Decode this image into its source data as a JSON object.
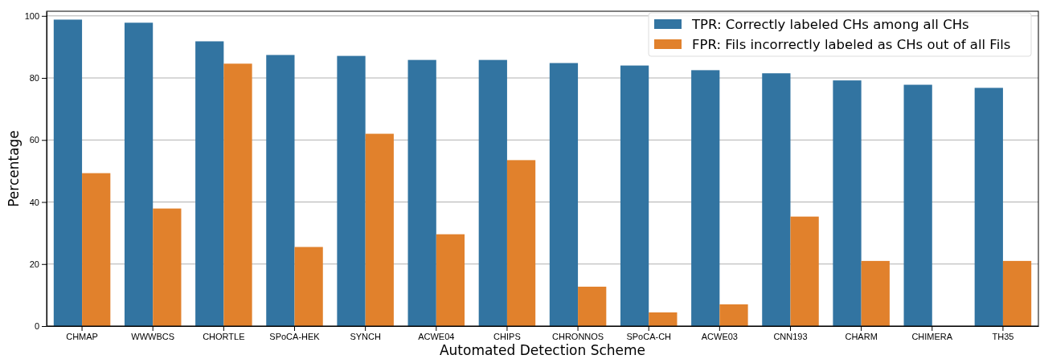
{
  "chart_data": {
    "type": "bar",
    "xlabel": "Automated Detection Scheme",
    "ylabel": "Percentage",
    "categories": [
      "CHMAP",
      "WWWBCS",
      "CHORTLE",
      "SPoCA-HEK",
      "SYNCH",
      "ACWE04",
      "CHIPS",
      "CHRONNOS",
      "SPoCA-CH",
      "ACWE03",
      "CNN193",
      "CHARM",
      "CHIMERA",
      "TH35"
    ],
    "series": [
      {
        "name": "TPR: Correctly labeled CHs among all CHs",
        "color": "#3274a1",
        "values": [
          98.8,
          97.8,
          91.8,
          87.4,
          87.1,
          85.8,
          85.8,
          84.8,
          84.0,
          82.5,
          81.5,
          79.2,
          77.8,
          76.8
        ]
      },
      {
        "name": "FPR: Fils incorrectly labeled as CHs out of all Fils",
        "color": "#e1812c",
        "values": [
          49.3,
          37.9,
          84.6,
          25.5,
          62.0,
          29.6,
          53.5,
          12.7,
          4.4,
          7.0,
          35.3,
          21.0,
          0,
          21.0
        ]
      }
    ],
    "ylim": [
      0,
      101.5
    ],
    "yticks": [
      0,
      20,
      40,
      60,
      80,
      100
    ],
    "grid": "y",
    "legend": "top right"
  }
}
